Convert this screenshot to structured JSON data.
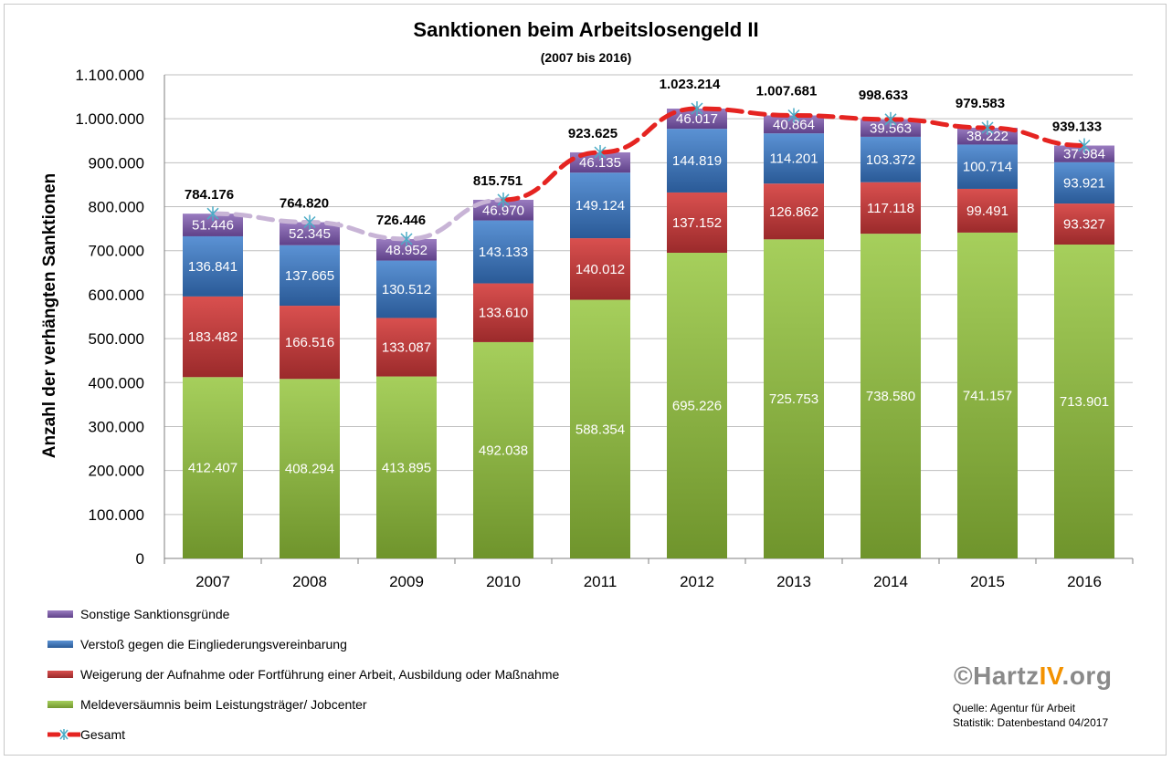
{
  "chart_data": {
    "type": "bar",
    "stacked": true,
    "title": "Sanktionen beim Arbeitslosengeld II",
    "subtitle": "(2007 bis 2016)",
    "ylabel": "Anzahl der verhängten Sanktionen",
    "xlabel": "",
    "ylim": [
      0,
      1100000
    ],
    "ytick_step": 100000,
    "ytick_labels": [
      "0",
      "100.000",
      "200.000",
      "300.000",
      "400.000",
      "500.000",
      "600.000",
      "700.000",
      "800.000",
      "900.000",
      "1.000.000",
      "1.100.000"
    ],
    "grid": true,
    "legend_position": "bottom-left",
    "categories": [
      "2007",
      "2008",
      "2009",
      "2010",
      "2011",
      "2012",
      "2013",
      "2014",
      "2015",
      "2016"
    ],
    "series": [
      {
        "name": "Meldeversäumnis beim Leistungsträger/ Jobcenter",
        "color": "#8db543",
        "values": [
          412407,
          408294,
          413895,
          492038,
          588354,
          695226,
          725753,
          738580,
          741157,
          713901
        ],
        "labels": [
          "412.407",
          "408.294",
          "413.895",
          "492.038",
          "588.354",
          "695.226",
          "725.753",
          "738.580",
          "741.157",
          "713.901"
        ]
      },
      {
        "name": "Weigerung der Aufnahme oder Fortführung einer Arbeit, Ausbildung oder Maßnahme",
        "color": "#c0393b",
        "values": [
          183482,
          166516,
          133087,
          133610,
          140012,
          137152,
          126862,
          117118,
          99491,
          93327
        ],
        "labels": [
          "183.482",
          "166.516",
          "133.087",
          "133.610",
          "140.012",
          "137.152",
          "126.862",
          "117.118",
          "99.491",
          "93.327"
        ]
      },
      {
        "name": "Verstoß gegen die Eingliederungsvereinbarung",
        "color": "#3a73b9",
        "values": [
          136841,
          137665,
          130512,
          143133,
          149124,
          144819,
          114201,
          103372,
          100714,
          93921
        ],
        "labels": [
          "136.841",
          "137.665",
          "130.512",
          "143.133",
          "149.124",
          "144.819",
          "114.201",
          "103.372",
          "100.714",
          "93.921"
        ]
      },
      {
        "name": "Sonstige Sanktionsgründe",
        "color": "#7a5aa6",
        "values": [
          51446,
          52345,
          48952,
          46970,
          46135,
          46017,
          40864,
          39563,
          38222,
          37984
        ],
        "labels": [
          "51.446",
          "52.345",
          "48.952",
          "46.970",
          "46.135",
          "46.017",
          "40.864",
          "39.563",
          "38.222",
          "37.984"
        ]
      }
    ],
    "total": {
      "name": "Gesamt",
      "values": [
        784176,
        764820,
        726446,
        815751,
        923625,
        1023214,
        1007681,
        998633,
        979583,
        939133
      ],
      "labels": [
        "784.176",
        "764.820",
        "726.446",
        "815.751",
        "923.625",
        "1.023.214",
        "1.007.681",
        "998.633",
        "979.583",
        "939.133"
      ],
      "line_color_before_2010": "#c8b4d6",
      "line_color": "#e52421",
      "marker_color": "#4bacc6"
    }
  },
  "legend": [
    {
      "name": "Sonstige Sanktionsgründe",
      "color": "#7a5aa6"
    },
    {
      "name": "Verstoß gegen die Eingliederungsvereinbarung",
      "color": "#3a73b9"
    },
    {
      "name": "Weigerung der Aufnahme oder Fortführung einer Arbeit, Ausbildung oder Maßnahme",
      "color": "#c0393b"
    },
    {
      "name": "Meldeversäumnis beim Leistungsträger/ Jobcenter",
      "color": "#8db543"
    },
    {
      "name": "Gesamt",
      "color": "#e52421"
    }
  ],
  "logo": {
    "copyright": "©",
    "part1": "Hartz",
    "part2": "IV",
    "part3": ".org"
  },
  "source": {
    "line1": "Quelle: Agentur für Arbeit",
    "line2": "Statistik: Datenbestand 04/2017"
  }
}
